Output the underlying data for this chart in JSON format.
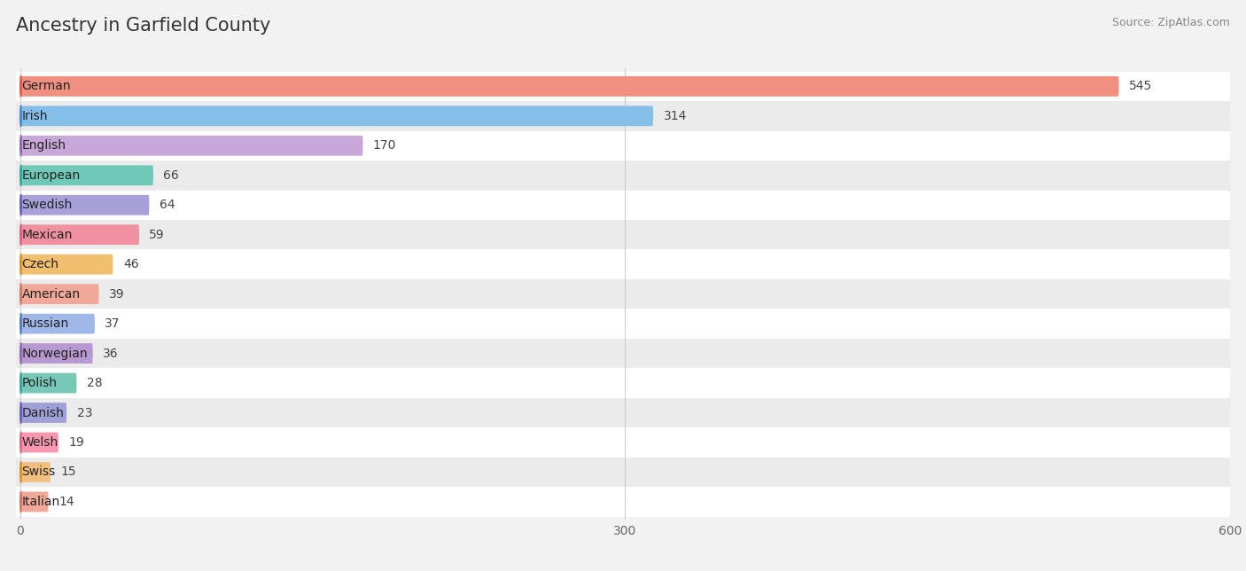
{
  "title": "Ancestry in Garfield County",
  "source": "Source: ZipAtlas.com",
  "categories": [
    "German",
    "Irish",
    "English",
    "European",
    "Swedish",
    "Mexican",
    "Czech",
    "American",
    "Russian",
    "Norwegian",
    "Polish",
    "Danish",
    "Welsh",
    "Swiss",
    "Italian"
  ],
  "values": [
    545,
    314,
    170,
    66,
    64,
    59,
    46,
    39,
    37,
    36,
    28,
    23,
    19,
    15,
    14
  ],
  "bar_colors": [
    "#EF9080",
    "#85BEE8",
    "#C8A8D8",
    "#70C8B8",
    "#A8A0D8",
    "#F090A0",
    "#F0C070",
    "#F0A898",
    "#A0B8E8",
    "#B898D0",
    "#78C8B8",
    "#A0A0D8",
    "#F898B0",
    "#F0C080",
    "#F0A898"
  ],
  "circle_colors": [
    "#E05848",
    "#4888C8",
    "#9068B0",
    "#38A898",
    "#6860B8",
    "#E06080",
    "#D89030",
    "#D07868",
    "#5880C0",
    "#9068B0",
    "#38A898",
    "#6860B8",
    "#E06888",
    "#D89030",
    "#D07868"
  ],
  "xlim": [
    0,
    600
  ],
  "xticks": [
    0,
    300,
    600
  ],
  "background_color": "#f2f2f2",
  "row_colors": [
    "#ffffff",
    "#ebebeb"
  ],
  "title_fontsize": 15,
  "label_fontsize": 10,
  "value_fontsize": 10,
  "tick_fontsize": 10,
  "source_fontsize": 9
}
